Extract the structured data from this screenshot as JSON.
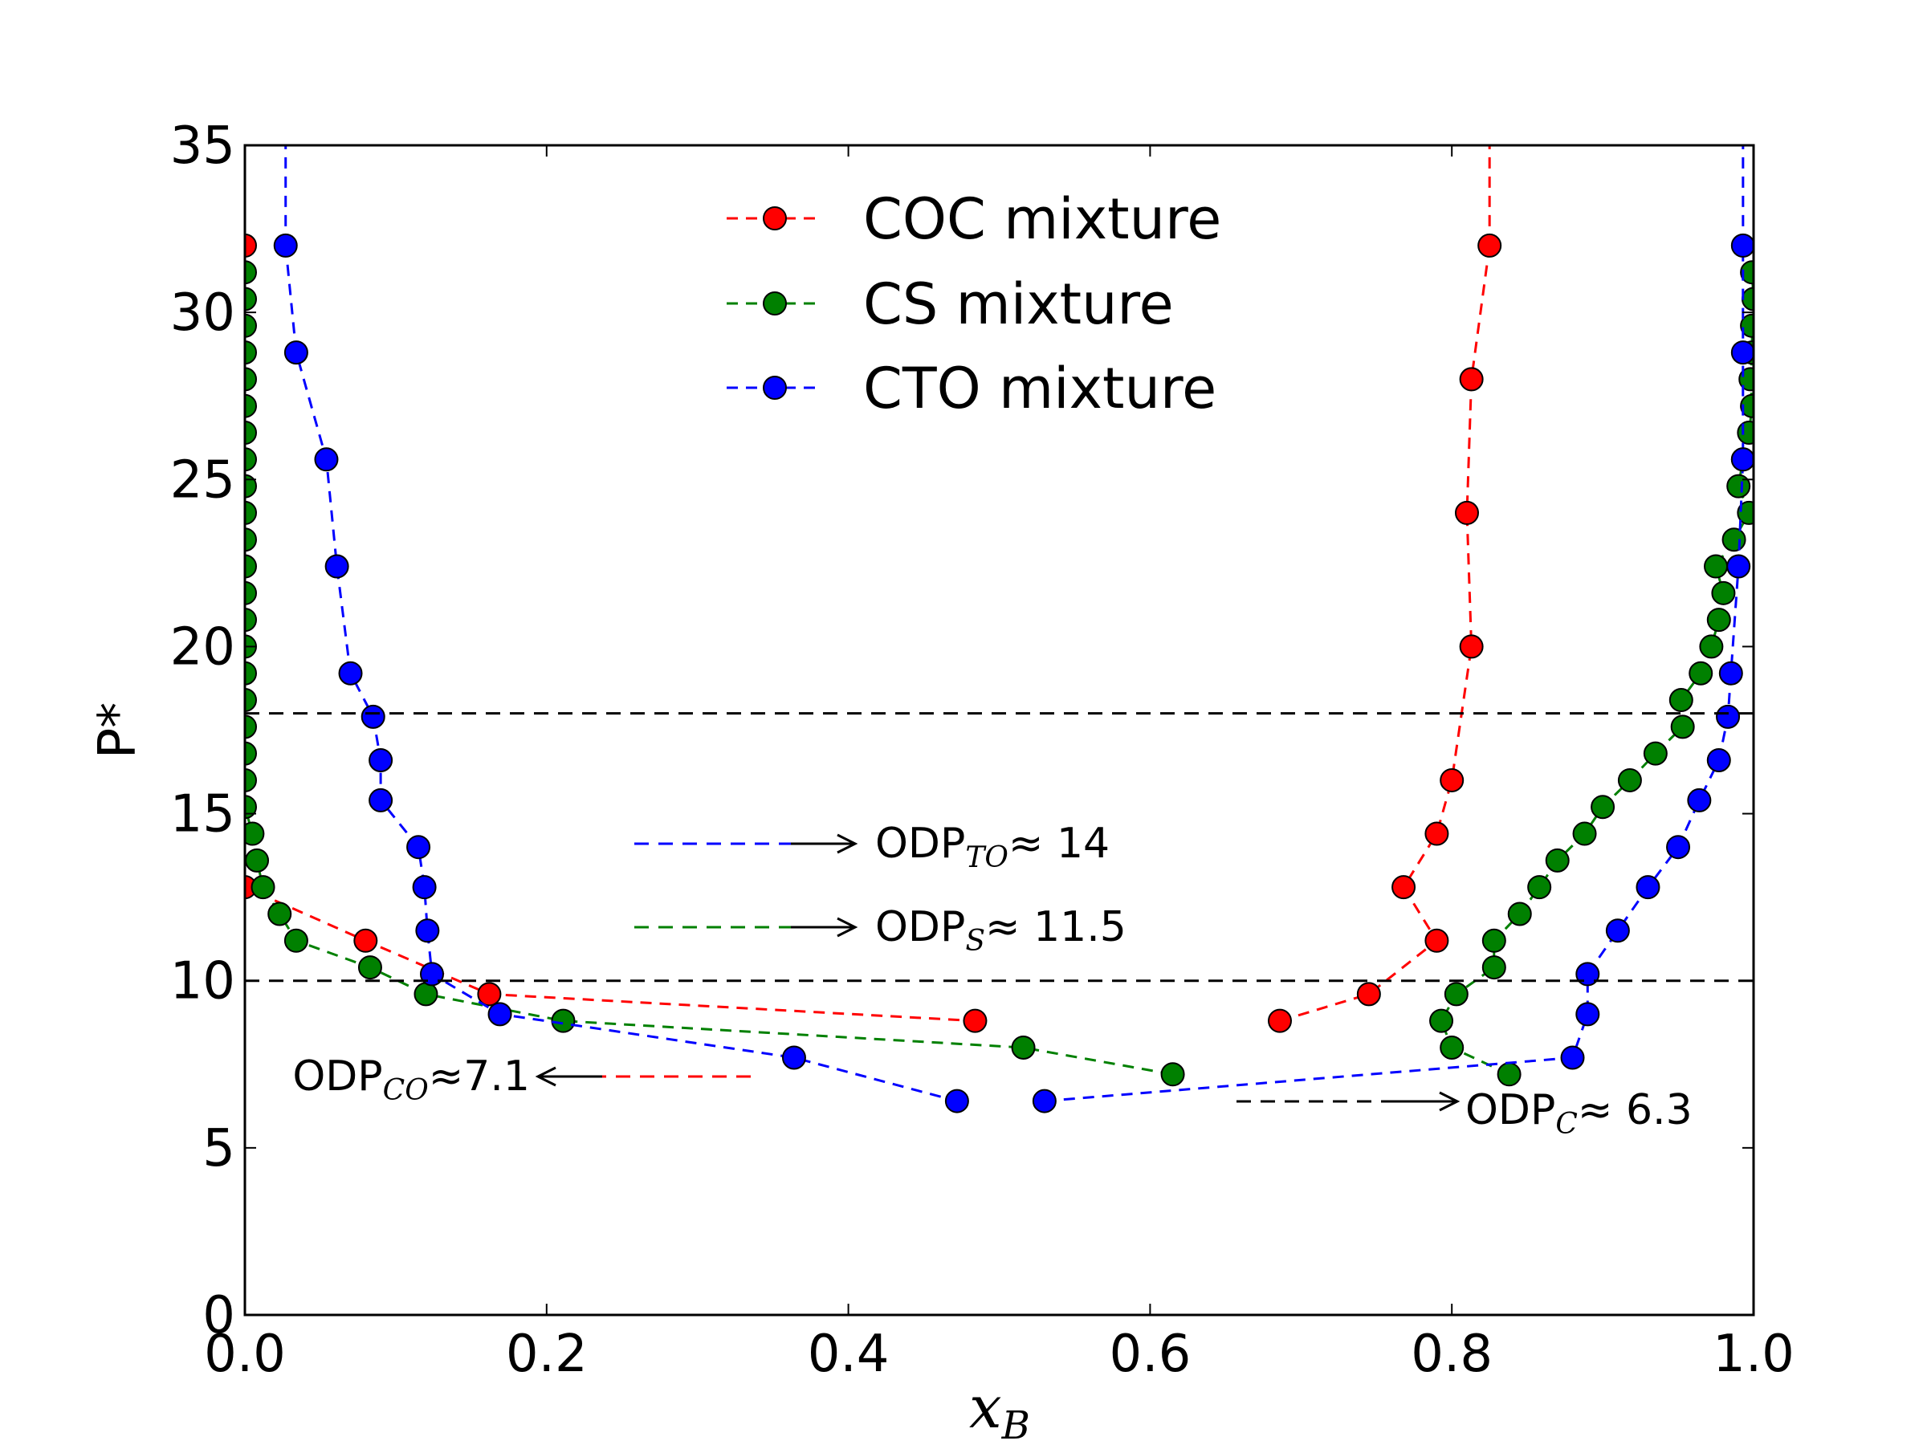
{
  "chart_data": {
    "type": "scatter",
    "title": "",
    "xlabel": {
      "main": "x",
      "sub": "B"
    },
    "ylabel": "P*",
    "xlim": [
      0.0,
      1.0
    ],
    "ylim": [
      0,
      35
    ],
    "xticks": [
      0.0,
      0.2,
      0.4,
      0.6,
      0.8,
      1.0
    ],
    "xtick_labels": [
      "0.0",
      "0.2",
      "0.4",
      "0.6",
      "0.8",
      "1.0"
    ],
    "yticks": [
      0,
      5,
      10,
      15,
      20,
      25,
      30,
      35
    ],
    "ytick_labels": [
      "0",
      "5",
      "10",
      "15",
      "20",
      "25",
      "30",
      "35"
    ],
    "grid": false,
    "legend_position": "top-center",
    "reference_lines": [
      10,
      18
    ],
    "series": [
      {
        "name": "COC mixture",
        "color": "#ff0000",
        "line_extension": [
          [
            0.825,
            35
          ]
        ],
        "left_branch": [
          [
            0.0,
            32.0
          ],
          [
            0.0,
            12.8
          ],
          [
            0.08,
            11.2
          ],
          [
            0.162,
            9.6
          ],
          [
            0.484,
            8.8
          ]
        ],
        "right_branch": [
          [
            0.686,
            8.8
          ],
          [
            0.745,
            9.6
          ],
          [
            0.79,
            11.2
          ],
          [
            0.768,
            12.8
          ],
          [
            0.79,
            14.4
          ],
          [
            0.8,
            16.0
          ],
          [
            0.813,
            20.0
          ],
          [
            0.81,
            24.0
          ],
          [
            0.813,
            28.0
          ],
          [
            0.825,
            32.0
          ]
        ]
      },
      {
        "name": "CS mixture",
        "color": "#008000",
        "left_branch": [
          [
            0.0,
            31.2
          ],
          [
            0.0,
            30.4
          ],
          [
            0.0,
            29.6
          ],
          [
            0.0,
            28.8
          ],
          [
            0.0,
            28.0
          ],
          [
            0.0,
            27.2
          ],
          [
            0.0,
            26.4
          ],
          [
            0.0,
            25.6
          ],
          [
            0.0,
            24.8
          ],
          [
            0.0,
            24.0
          ],
          [
            0.0,
            23.2
          ],
          [
            0.0,
            22.4
          ],
          [
            0.0,
            21.6
          ],
          [
            0.0,
            20.8
          ],
          [
            0.0,
            20.0
          ],
          [
            0.0,
            19.2
          ],
          [
            0.0,
            18.4
          ],
          [
            0.0,
            17.6
          ],
          [
            0.0,
            16.8
          ],
          [
            0.0,
            16.0
          ],
          [
            0.0,
            15.2
          ],
          [
            0.005,
            14.4
          ],
          [
            0.008,
            13.6
          ],
          [
            0.012,
            12.8
          ],
          [
            0.023,
            12.0
          ],
          [
            0.034,
            11.2
          ],
          [
            0.083,
            10.4
          ],
          [
            0.12,
            9.6
          ],
          [
            0.211,
            8.8
          ],
          [
            0.516,
            8.0
          ],
          [
            0.615,
            7.2
          ]
        ],
        "right_branch": [
          [
            0.838,
            7.2
          ],
          [
            0.8,
            8.0
          ],
          [
            0.793,
            8.8
          ],
          [
            0.803,
            9.6
          ],
          [
            0.828,
            10.4
          ],
          [
            0.828,
            11.2
          ],
          [
            0.845,
            12.0
          ],
          [
            0.858,
            12.8
          ],
          [
            0.87,
            13.6
          ],
          [
            0.888,
            14.4
          ],
          [
            0.9,
            15.2
          ],
          [
            0.918,
            16.0
          ],
          [
            0.935,
            16.8
          ],
          [
            0.953,
            17.6
          ],
          [
            0.952,
            18.4
          ],
          [
            0.965,
            19.2
          ],
          [
            0.972,
            20.0
          ],
          [
            0.977,
            20.8
          ],
          [
            0.98,
            21.6
          ],
          [
            0.975,
            22.4
          ],
          [
            0.987,
            23.2
          ],
          [
            0.997,
            24.0
          ],
          [
            0.99,
            24.8
          ],
          [
            0.993,
            25.6
          ],
          [
            0.997,
            26.4
          ],
          [
            0.999,
            27.2
          ],
          [
            0.998,
            28.0
          ],
          [
            0.999,
            28.8
          ],
          [
            0.999,
            29.6
          ],
          [
            1.0,
            30.4
          ],
          [
            0.999,
            31.2
          ]
        ]
      },
      {
        "name": "CTO mixture",
        "color": "#0000ff",
        "line_extension": [
          [
            0.027,
            35
          ],
          [
            0.993,
            35
          ]
        ],
        "left_branch": [
          [
            0.027,
            32.0
          ],
          [
            0.034,
            28.8
          ],
          [
            0.054,
            25.6
          ],
          [
            0.061,
            22.4
          ],
          [
            0.07,
            19.2
          ],
          [
            0.085,
            17.9
          ],
          [
            0.09,
            16.6
          ],
          [
            0.09,
            15.4
          ],
          [
            0.115,
            14.0
          ],
          [
            0.119,
            12.8
          ],
          [
            0.121,
            11.5
          ],
          [
            0.124,
            10.2
          ],
          [
            0.169,
            9.0
          ],
          [
            0.364,
            7.7
          ],
          [
            0.472,
            6.4
          ]
        ],
        "right_branch": [
          [
            0.53,
            6.4
          ],
          [
            0.88,
            7.7
          ],
          [
            0.89,
            9.0
          ],
          [
            0.89,
            10.2
          ],
          [
            0.91,
            11.5
          ],
          [
            0.93,
            12.8
          ],
          [
            0.95,
            14.0
          ],
          [
            0.964,
            15.4
          ],
          [
            0.977,
            16.6
          ],
          [
            0.983,
            17.9
          ],
          [
            0.985,
            19.2
          ],
          [
            0.99,
            22.4
          ],
          [
            0.993,
            25.6
          ],
          [
            0.993,
            28.8
          ],
          [
            0.993,
            32.0
          ]
        ]
      }
    ],
    "annotations": {
      "to": {
        "main": "ODP",
        "sub": "TO",
        "value": "≈  14"
      },
      "s": {
        "main": "ODP",
        "sub": "S",
        "value": "≈ 11.5"
      },
      "co": {
        "main": "ODP",
        "sub": "CO",
        "value": "≈7.1"
      },
      "c": {
        "main": "ODP",
        "sub": "C",
        "value": "≈ 6.3"
      }
    }
  }
}
